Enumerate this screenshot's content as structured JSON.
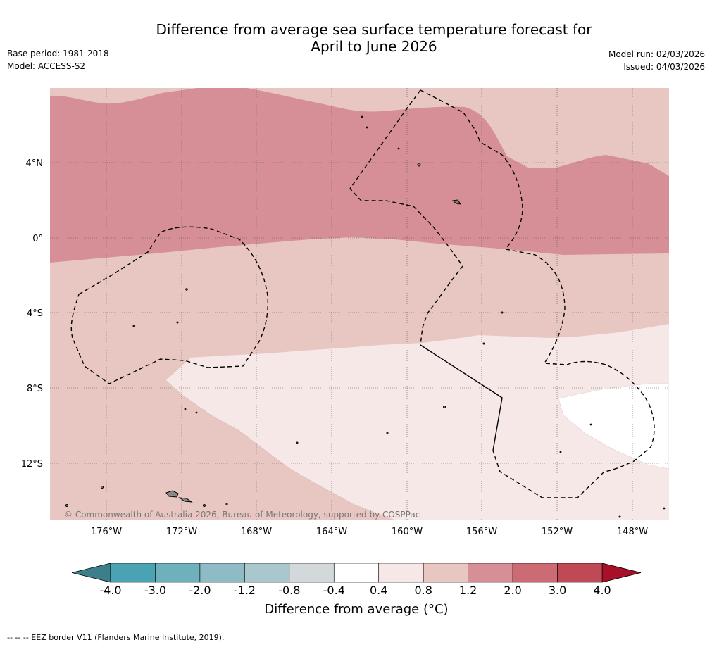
{
  "title_line1": "Difference from average sea surface temperature forecast for",
  "title_line2": "April to June 2026",
  "base_period": "Base period: 1981-2018",
  "model": "Model: ACCESS-S2",
  "model_run": "Model run: 02/03/2026",
  "issued": "Issued: 04/03/2026",
  "copyright": "© Commonwealth of Australia 2026, Bureau of Meteorology, supported by COSPPac",
  "lat_labels": [
    "4°N",
    "0°",
    "4°S",
    "8°S",
    "12°S"
  ],
  "lon_labels": [
    "176°W",
    "172°W",
    "168°W",
    "164°W",
    "160°W",
    "156°W",
    "152°W",
    "148°W"
  ],
  "colorbar": {
    "ticks": [
      "-4.0",
      "-3.0",
      "-2.0",
      "-1.2",
      "-0.8",
      "-0.4",
      "0.4",
      "0.8",
      "1.2",
      "2.0",
      "3.0",
      "4.0"
    ],
    "colors": [
      "#4aa3b3",
      "#6fb0bd",
      "#8fbbc6",
      "#a9c8cd",
      "#d3d8db",
      "#ffffff",
      "#f5e8e7",
      "#e8c7c3",
      "#d78f97",
      "#cc6b73",
      "#bf4a55"
    ],
    "under_color": "#3a7f8a",
    "over_color": "#a8102a",
    "title": "Difference from average (°C)"
  },
  "colors": {
    "band_2_0": "#d78f97",
    "band_1_2": "#e8c7c3",
    "band_0_8": "#f5e8e7",
    "band_0_4": "#ffffff"
  },
  "footnote": "--  --  -- EEZ border V11 (Flanders Marine Institute, 2019)."
}
